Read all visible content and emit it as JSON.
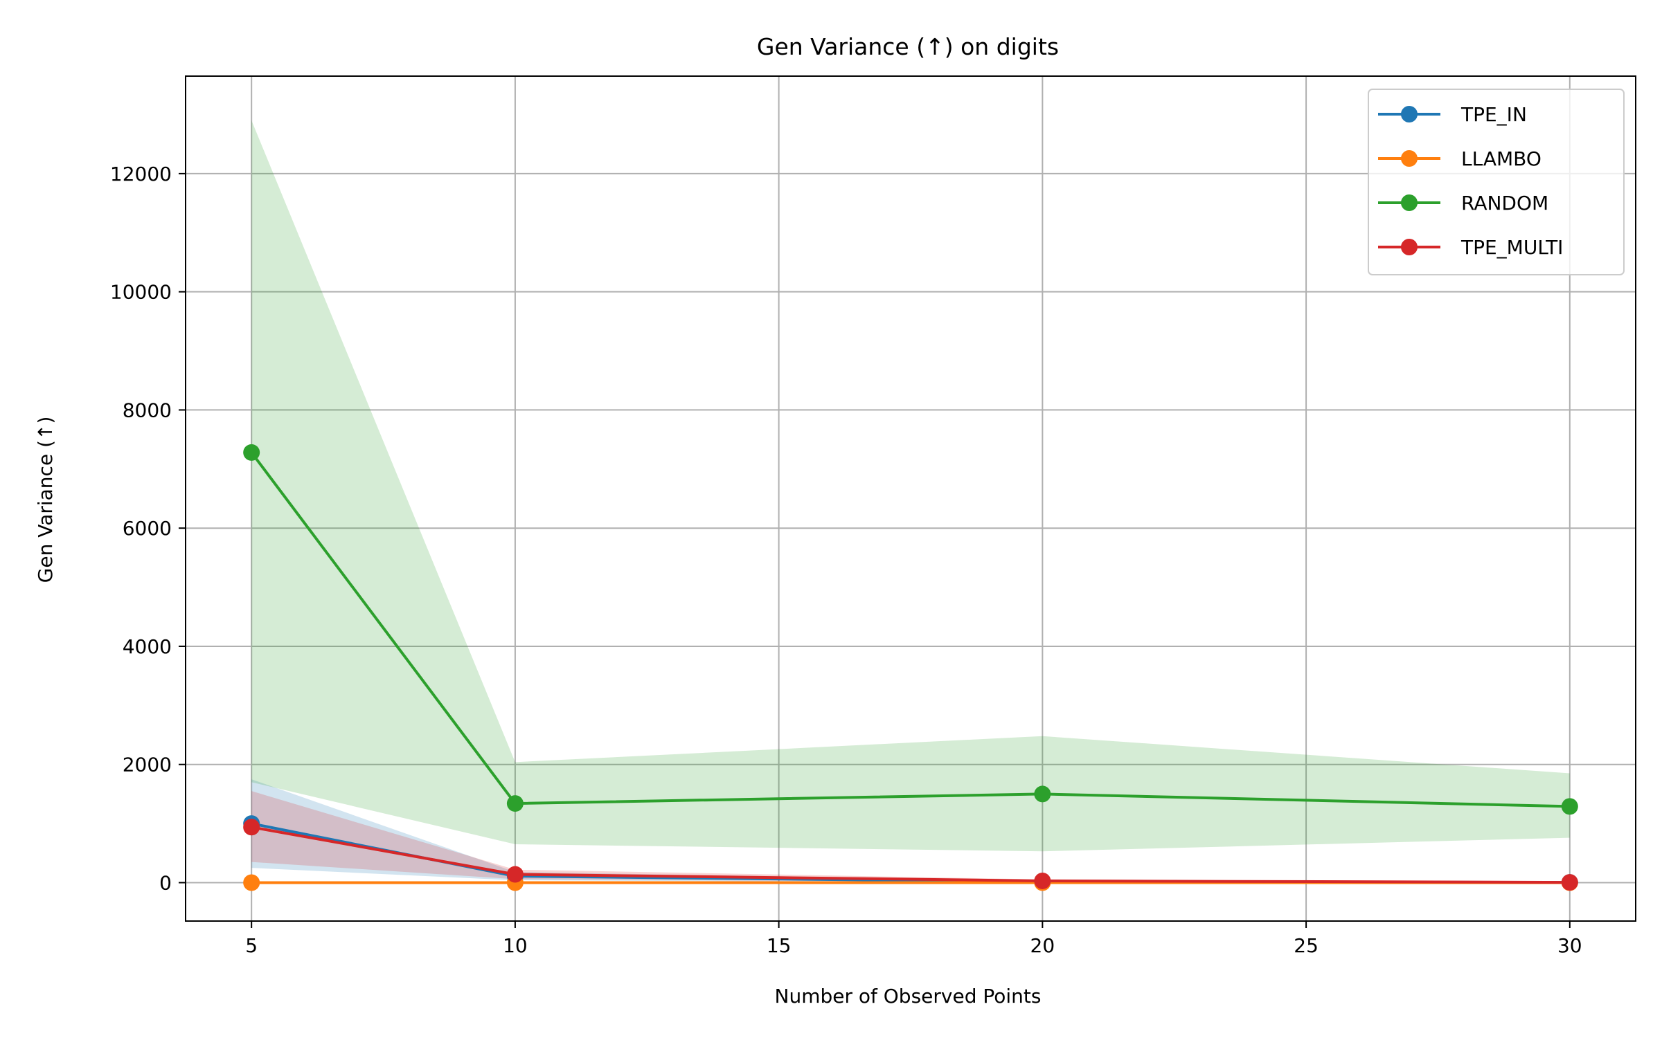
{
  "chart_data": {
    "type": "line",
    "title": "Gen Variance (↑) on digits",
    "xlabel": "Number of Observed Points",
    "ylabel": "Gen Variance (↑)",
    "x": [
      5,
      10,
      20,
      30
    ],
    "xlim": [
      3.75,
      31.25
    ],
    "ylim": [
      -650,
      13650
    ],
    "xticks": [
      5,
      10,
      15,
      20,
      25,
      30
    ],
    "yticks": [
      0,
      2000,
      4000,
      6000,
      8000,
      10000,
      12000
    ],
    "grid": true,
    "legend_position": "top-right",
    "series": [
      {
        "name": "TPE_IN",
        "color": "#1f77b4",
        "values": [
          1000,
          110,
          15,
          5
        ],
        "lower": [
          250,
          40,
          0,
          0
        ],
        "upper": [
          1750,
          180,
          35,
          12
        ]
      },
      {
        "name": "LLAMBO",
        "color": "#ff7f0e",
        "values": [
          0,
          0,
          0,
          0
        ],
        "lower": [
          0,
          0,
          0,
          0
        ],
        "upper": [
          0,
          0,
          0,
          0
        ]
      },
      {
        "name": "RANDOM",
        "color": "#2ca02c",
        "values": [
          7280,
          1340,
          1500,
          1290
        ],
        "lower": [
          1700,
          650,
          530,
          760
        ],
        "upper": [
          12900,
          2040,
          2480,
          1850
        ]
      },
      {
        "name": "TPE_MULTI",
        "color": "#d62728",
        "values": [
          940,
          140,
          30,
          5
        ],
        "lower": [
          350,
          60,
          5,
          0
        ],
        "upper": [
          1550,
          220,
          55,
          12
        ]
      }
    ]
  }
}
